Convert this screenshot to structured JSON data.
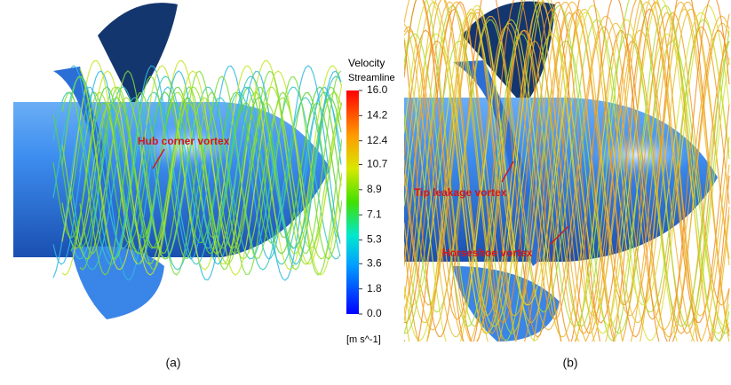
{
  "colorbar": {
    "title": "Velocity",
    "subtitle": "Streamline",
    "ticks": [
      {
        "value": 16,
        "label": "16.0"
      },
      {
        "value": 14.2,
        "label": "14.2"
      },
      {
        "value": 12.4,
        "label": "12.4"
      },
      {
        "value": 10.7,
        "label": "10.7"
      },
      {
        "value": 8.9,
        "label": "8.9"
      },
      {
        "value": 7.1,
        "label": "7.1"
      },
      {
        "value": 5.3,
        "label": "5.3"
      },
      {
        "value": 3.6,
        "label": "3.6"
      },
      {
        "value": 1.8,
        "label": "1.8"
      },
      {
        "value": 0,
        "label": "0.0"
      }
    ],
    "unit": "[m s^-1]"
  },
  "panels": [
    {
      "caption": "(a)",
      "annotations": [
        "Hub corner vortex"
      ]
    },
    {
      "caption": "(b)",
      "annotations": [
        "Tip leakage vortex",
        "Horseshoe vortex"
      ]
    }
  ]
}
